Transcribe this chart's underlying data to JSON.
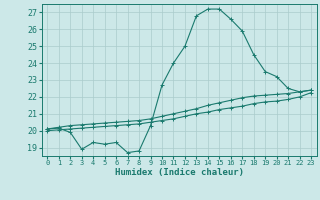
{
  "title": "",
  "xlabel": "Humidex (Indice chaleur)",
  "background_color": "#cce8e8",
  "grid_color": "#aacccc",
  "line_color": "#1a7a6e",
  "xlim": [
    -0.5,
    23.5
  ],
  "ylim": [
    18.5,
    27.5
  ],
  "xticks": [
    0,
    1,
    2,
    3,
    4,
    5,
    6,
    7,
    8,
    9,
    10,
    11,
    12,
    13,
    14,
    15,
    16,
    17,
    18,
    19,
    20,
    21,
    22,
    23
  ],
  "yticks": [
    19,
    20,
    21,
    22,
    23,
    24,
    25,
    26,
    27
  ],
  "series1_x": [
    0,
    1,
    2,
    3,
    4,
    5,
    6,
    7,
    8,
    9,
    10,
    11,
    12,
    13,
    14,
    15,
    16,
    17,
    18,
    19,
    20,
    21,
    22,
    23
  ],
  "series1_y": [
    20.1,
    20.15,
    19.9,
    18.9,
    19.3,
    19.2,
    19.3,
    18.7,
    18.8,
    20.3,
    22.7,
    24.0,
    25.0,
    26.8,
    27.2,
    27.2,
    26.6,
    25.9,
    24.5,
    23.5,
    23.2,
    22.5,
    22.3,
    22.4
  ],
  "series2_x": [
    0,
    1,
    2,
    3,
    4,
    5,
    6,
    7,
    8,
    9,
    10,
    11,
    12,
    13,
    14,
    15,
    16,
    17,
    18,
    19,
    20,
    21,
    22,
    23
  ],
  "series2_y": [
    20.1,
    20.2,
    20.3,
    20.35,
    20.4,
    20.45,
    20.5,
    20.55,
    20.6,
    20.7,
    20.85,
    21.0,
    21.15,
    21.3,
    21.5,
    21.65,
    21.8,
    21.95,
    22.05,
    22.1,
    22.15,
    22.2,
    22.3,
    22.4
  ],
  "series3_x": [
    0,
    1,
    2,
    3,
    4,
    5,
    6,
    7,
    8,
    9,
    10,
    11,
    12,
    13,
    14,
    15,
    16,
    17,
    18,
    19,
    20,
    21,
    22,
    23
  ],
  "series3_y": [
    20.0,
    20.05,
    20.1,
    20.15,
    20.2,
    20.25,
    20.3,
    20.35,
    20.4,
    20.5,
    20.6,
    20.7,
    20.85,
    21.0,
    21.1,
    21.25,
    21.35,
    21.45,
    21.6,
    21.7,
    21.75,
    21.85,
    22.0,
    22.25
  ]
}
